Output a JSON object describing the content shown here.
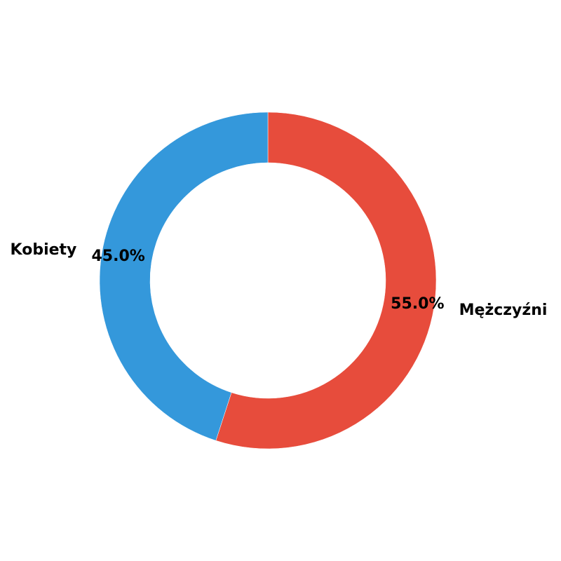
{
  "chart_data": {
    "type": "pie",
    "variant": "donut",
    "title": "",
    "slices": [
      {
        "label": "Mężczyźni",
        "value": 55.0,
        "percent_label": "55.0%",
        "color": "#e74c3c"
      },
      {
        "label": "Kobiety",
        "value": 45.0,
        "percent_label": "45.0%",
        "color": "#3498db"
      }
    ],
    "start_angle_deg": 90,
    "direction": "clockwise",
    "legend": "none"
  }
}
